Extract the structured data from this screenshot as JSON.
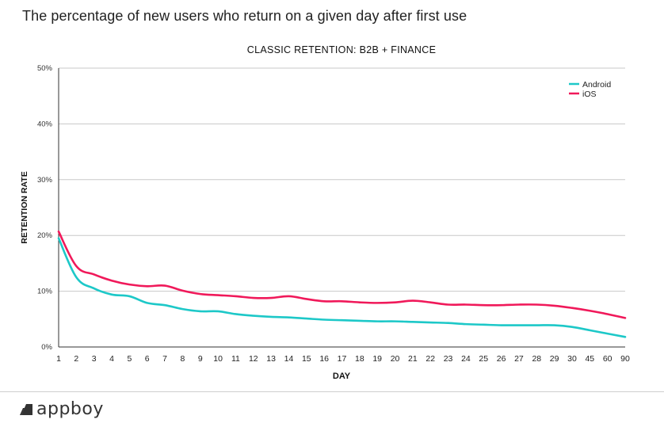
{
  "heading": "The percentage of new users who return on a given day after first use",
  "brand": {
    "name": "appboy",
    "logo_icon": "appboy-logo-icon"
  },
  "chart_data": {
    "type": "line",
    "title": "CLASSIC RETENTION: B2B + FINANCE",
    "xlabel": "DAY",
    "ylabel": "RETENTION RATE",
    "ylim": [
      0,
      50
    ],
    "yticks": [
      0,
      10,
      20,
      30,
      40,
      50
    ],
    "ytick_labels": [
      "0%",
      "10%",
      "20%",
      "30%",
      "40%",
      "50%"
    ],
    "grid": true,
    "legend_position": "top-right",
    "categories": [
      "1",
      "2",
      "3",
      "4",
      "5",
      "6",
      "7",
      "8",
      "9",
      "10",
      "11",
      "12",
      "13",
      "14",
      "15",
      "16",
      "17",
      "18",
      "19",
      "20",
      "21",
      "22",
      "23",
      "24",
      "25",
      "26",
      "27",
      "28",
      "29",
      "30",
      "45",
      "60",
      "90"
    ],
    "series": [
      {
        "name": "Android",
        "color": "#1dc8c8",
        "values": [
          19.5,
          12.5,
          10.5,
          9.4,
          9.1,
          7.9,
          7.5,
          6.8,
          6.4,
          6.4,
          5.9,
          5.6,
          5.4,
          5.3,
          5.1,
          4.9,
          4.8,
          4.7,
          4.6,
          4.6,
          4.5,
          4.4,
          4.3,
          4.1,
          4.0,
          3.9,
          3.9,
          3.9,
          3.9,
          3.6,
          3.0,
          2.4,
          1.8
        ]
      },
      {
        "name": "iOS",
        "color": "#f0195a",
        "values": [
          20.7,
          14.5,
          13.0,
          11.9,
          11.2,
          10.9,
          11.0,
          10.1,
          9.5,
          9.3,
          9.1,
          8.8,
          8.8,
          9.1,
          8.6,
          8.2,
          8.2,
          8.0,
          7.9,
          8.0,
          8.3,
          8.0,
          7.6,
          7.6,
          7.5,
          7.5,
          7.6,
          7.6,
          7.4,
          7.0,
          6.5,
          5.9,
          5.2
        ]
      }
    ]
  }
}
